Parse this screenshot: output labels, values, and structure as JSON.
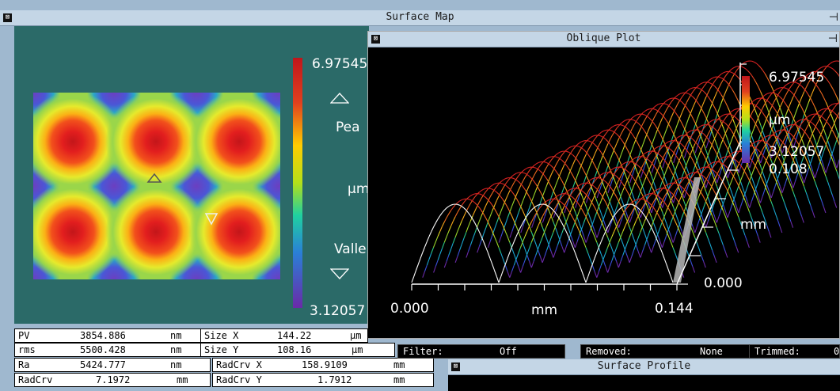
{
  "surface_map": {
    "title": "Surface Map",
    "scale_max": "6.97545",
    "scale_min": "3.12057",
    "peak_label": "Pea",
    "unit_label": "µm",
    "valley_label": "Valle"
  },
  "oblique_plot": {
    "title": "Oblique Plot",
    "scale_max": "6.97545",
    "unit": "µm",
    "scale_mid": "3.12057",
    "scale_min": "0.108",
    "y_axis_label": "mm",
    "y_axis_start": "0.000",
    "x_axis_start": "0.000",
    "x_axis_label": "mm",
    "x_axis_end": "0.144"
  },
  "stats": {
    "pv": {
      "label": "PV",
      "value": "3854.886",
      "unit": "nm"
    },
    "rms": {
      "label": "rms",
      "value": "5500.428",
      "unit": "nm"
    },
    "ra": {
      "label": "Ra",
      "value": "5424.777",
      "unit": "nm"
    },
    "radcrv": {
      "label": "RadCrv",
      "value": "7.1972",
      "unit": "mm"
    },
    "size_x": {
      "label": "Size X",
      "value": "144.22",
      "unit": "µm"
    },
    "size_y": {
      "label": "Size Y",
      "value": "108.16",
      "unit": "µm"
    },
    "radcrv_x": {
      "label": "RadCrv X",
      "value": "158.9109",
      "unit": "mm"
    },
    "radcrv_y": {
      "label": "RadCrv Y",
      "value": "1.7912",
      "unit": "mm"
    }
  },
  "filter": {
    "label": "Filter:",
    "value": "Off"
  },
  "removed": {
    "label": "Removed:",
    "value": "None"
  },
  "trimmed": {
    "label": "Trimmed:",
    "value": "0"
  },
  "surface_profile": {
    "title": "Surface Profile"
  },
  "icons": {
    "close": "close-box-icon",
    "pin": "pin-icon",
    "peak": "triangle-up-icon",
    "valley": "triangle-down-icon"
  }
}
